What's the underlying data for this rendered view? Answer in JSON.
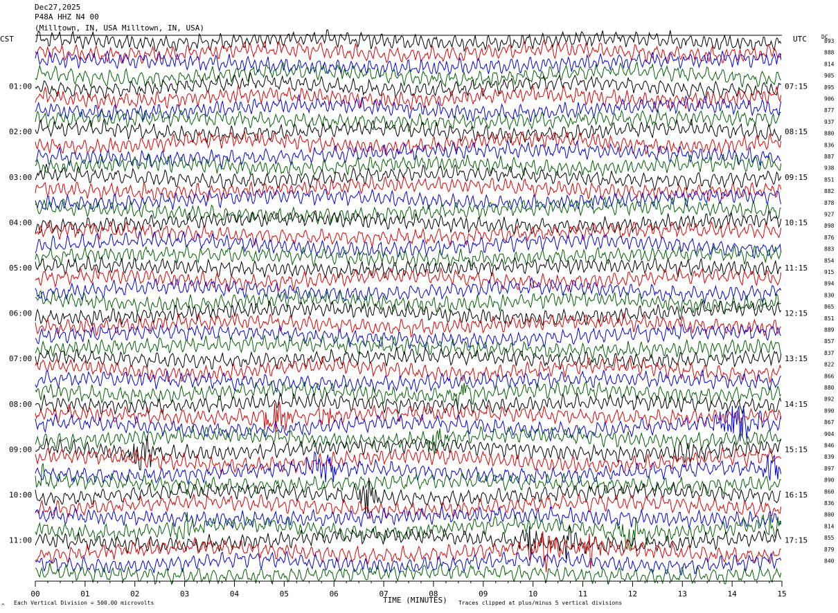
{
  "header": {
    "date": "Dec27,2025",
    "station": "P48A HHZ N4 00",
    "location": "(Milltown, IN, USA Milltown, IN, USA)"
  },
  "left_tz": "CST",
  "right_tz": "UTC",
  "dc_label": "DC",
  "footer": {
    "left_mark": "^",
    "scale_note": "Each Vertical Division =  500.00 microvolts",
    "xaxis_title": "TIME (MINUTES)",
    "clip_note": "Traces clipped at plus/minus 5 vertical divisions"
  },
  "colors": {
    "trace_cycle": [
      "#000000",
      "#e00000",
      "#0000e0",
      "#006000"
    ],
    "axis": "#000000",
    "background": "#ffffff"
  },
  "chart_data": {
    "type": "line",
    "chart_kind": "helicorder",
    "x_ticks": [
      "00",
      "01",
      "02",
      "03",
      "04",
      "05",
      "06",
      "07",
      "08",
      "09",
      "10",
      "11",
      "12",
      "13",
      "14",
      "15"
    ],
    "xlim": [
      0,
      15
    ],
    "left_hour_labels": [
      "01:00",
      "02:00",
      "03:00",
      "04:00",
      "05:00",
      "06:00",
      "07:00",
      "08:00",
      "09:00",
      "10:00",
      "11:00"
    ],
    "right_hour_labels": [
      "07:15",
      "08:15",
      "09:15",
      "10:15",
      "11:15",
      "12:15",
      "13:15",
      "14:15",
      "15:15",
      "16:15",
      "17:15"
    ],
    "dc_values": [
      "893",
      "888",
      "814",
      "905",
      "895",
      "906",
      "877",
      "937",
      "880",
      "836",
      "887",
      "938",
      "851",
      "882",
      "878",
      "927",
      "898",
      "876",
      "883",
      "854",
      "915",
      "894",
      "830",
      "865",
      "851",
      "889",
      "857",
      "837",
      "822",
      "866",
      "880",
      "892",
      "890",
      "867",
      "904",
      "846",
      "839",
      "897",
      "890",
      "860",
      "836",
      "800",
      "814",
      "855",
      "879",
      "840"
    ],
    "row_count": 48,
    "rows_per_hour": 4,
    "minutes_per_row": 15,
    "events": [
      {
        "row": 31,
        "start_min": 8.3,
        "end_min": 8.8,
        "amp": 4.0
      },
      {
        "row": 33,
        "start_min": 4.5,
        "end_min": 5.2,
        "amp": 6.0
      },
      {
        "row": 33,
        "start_min": 5.6,
        "end_min": 6.2,
        "amp": 2.5
      },
      {
        "row": 34,
        "start_min": 13.6,
        "end_min": 14.6,
        "amp": 7.0
      },
      {
        "row": 35,
        "start_min": 7.7,
        "end_min": 8.3,
        "amp": 3.0
      },
      {
        "row": 36,
        "start_min": 1.8,
        "end_min": 2.5,
        "amp": 5.5
      },
      {
        "row": 36,
        "start_min": 12.5,
        "end_min": 13.6,
        "amp": 2.0
      },
      {
        "row": 38,
        "start_min": 5.4,
        "end_min": 6.1,
        "amp": 5.0
      },
      {
        "row": 38,
        "start_min": 14.6,
        "end_min": 15.0,
        "amp": 4.0
      },
      {
        "row": 39,
        "start_min": 0.0,
        "end_min": 0.3,
        "amp": 2.5
      },
      {
        "row": 40,
        "start_min": 6.4,
        "end_min": 6.9,
        "amp": 5.0
      },
      {
        "row": 43,
        "start_min": 2.7,
        "end_min": 3.5,
        "amp": 3.0
      },
      {
        "row": 43,
        "start_min": 11.6,
        "end_min": 12.3,
        "amp": 4.5
      },
      {
        "row": 43,
        "start_min": 14.6,
        "end_min": 15.0,
        "amp": 5.0
      },
      {
        "row": 44,
        "start_min": 9.6,
        "end_min": 10.2,
        "amp": 4.5
      },
      {
        "row": 44,
        "start_min": 10.5,
        "end_min": 10.9,
        "amp": 5.0
      },
      {
        "row": 45,
        "start_min": 9.9,
        "end_min": 10.6,
        "amp": 5.0
      },
      {
        "row": 45,
        "start_min": 10.9,
        "end_min": 11.4,
        "amp": 5.0
      }
    ],
    "clip_divisions": 5
  }
}
